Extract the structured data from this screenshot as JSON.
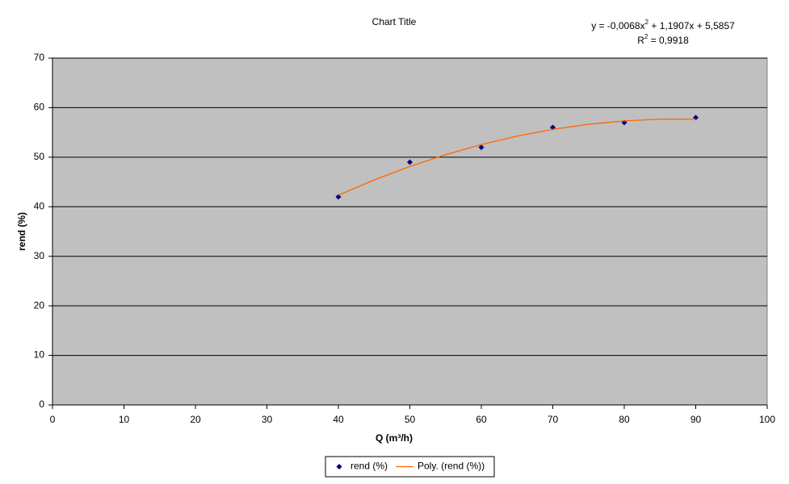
{
  "chart_data": {
    "type": "scatter",
    "title": "Chart Title",
    "x_label": "Q (m³/h)",
    "y_label": "rend (%)",
    "equation": [
      "y = -0,0068x",
      "2",
      " + 1,1907x + 5,5857"
    ],
    "r_squared": [
      "R",
      "2",
      " = 0,9918"
    ],
    "xlim": [
      0,
      100
    ],
    "xticks": [
      0,
      10,
      20,
      30,
      40,
      50,
      60,
      70,
      80,
      90,
      100
    ],
    "ylim": [
      0,
      70
    ],
    "yticks": [
      0,
      10,
      20,
      30,
      40,
      50,
      60,
      70
    ],
    "grid": true,
    "background": "#c0c0c0",
    "legend": "bottom",
    "series": [
      {
        "name": "rend (%)",
        "mode": "markers",
        "color": "#000080",
        "x": [
          40,
          50,
          60,
          70,
          80,
          90
        ],
        "values": [
          42,
          49,
          52,
          56,
          57,
          58
        ]
      },
      {
        "name": "Poly. (rend (%))",
        "mode": "line",
        "color": "#ff6600",
        "x": [
          40,
          45,
          50,
          55,
          60,
          65,
          70,
          75,
          80,
          85,
          90
        ],
        "values": [
          42.33,
          45.4,
          48.12,
          50.5,
          52.55,
          54.25,
          55.62,
          56.64,
          57.32,
          57.67,
          57.67
        ]
      }
    ]
  }
}
